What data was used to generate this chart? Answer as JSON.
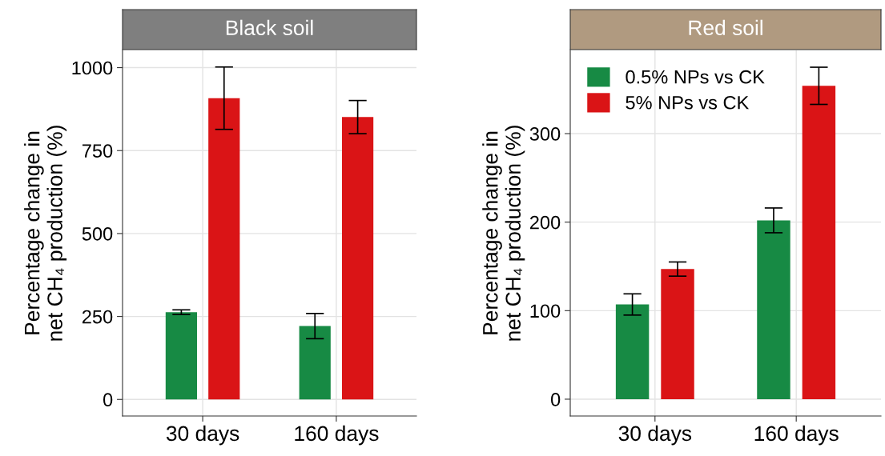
{
  "chart_data": [
    {
      "type": "bar",
      "title": "Black soil",
      "ylabel": "Percentage change in\nnet CH₄ production (%)",
      "categories": [
        "30 days",
        "160 days"
      ],
      "series": [
        {
          "color": "#178a44",
          "values": [
            263,
            221
          ],
          "errors": [
            7,
            38
          ]
        },
        {
          "color": "#da1416",
          "values": [
            908,
            851
          ],
          "errors": [
            94,
            50
          ]
        }
      ],
      "ylim": [
        -50,
        1052
      ],
      "yticks": [
        0,
        250,
        500,
        750,
        1000
      ],
      "grid": true,
      "legend": false
    },
    {
      "type": "bar",
      "title": "Red soil",
      "ylabel": "Percentage change in\nnet CH₄ production (%)",
      "categories": [
        "30 days",
        "160 days"
      ],
      "series": [
        {
          "name": "0.5% NPs vs CK",
          "color": "#178a44",
          "values": [
            107,
            202
          ],
          "errors": [
            12,
            14
          ]
        },
        {
          "name": "5% NPs vs CK",
          "color": "#da1416",
          "values": [
            147,
            354
          ],
          "errors": [
            8,
            21
          ]
        }
      ],
      "ylim": [
        -19,
        394
      ],
      "yticks": [
        0,
        100,
        200,
        300
      ],
      "grid": true,
      "legend": "top left"
    }
  ]
}
